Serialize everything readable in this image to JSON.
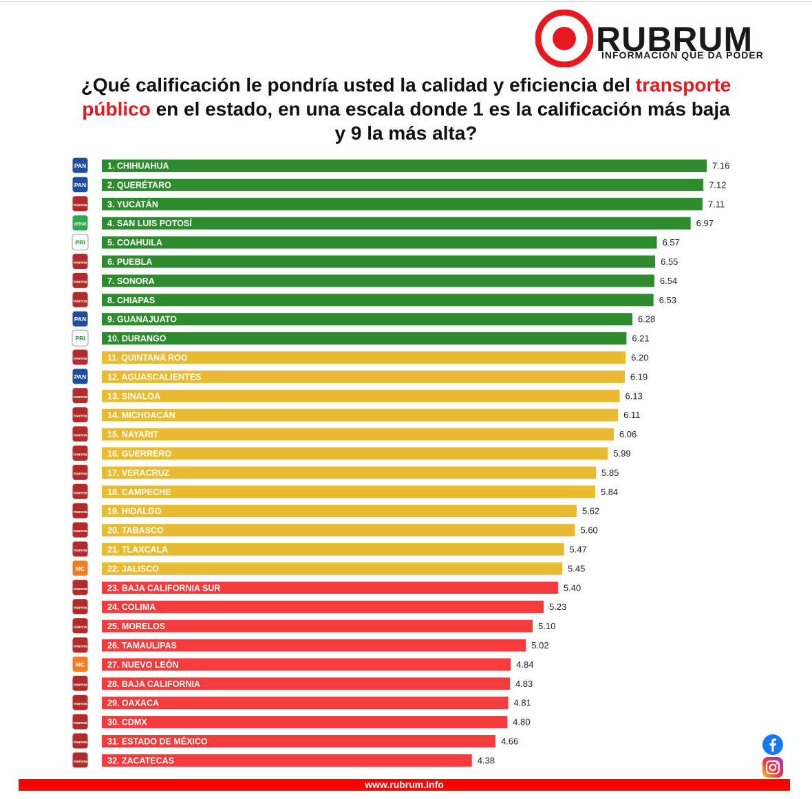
{
  "brand": {
    "name": "RUBRUM",
    "tagline": "INFORMACIÓN QUE DA PODER",
    "website": "www.rubrum.info",
    "accent_color": "#e6191e"
  },
  "title": {
    "part1": "¿Qué calificación le pondría usted la calidad y eficiencia del ",
    "highlight": "transporte público",
    "part2": " en el estado, en una escala donde 1 es la calificación más baja y 9 la más alta?"
  },
  "colors": {
    "green": "#2e8b2e",
    "yellow": "#e8bb30",
    "red": "#f53b3b"
  },
  "party_logos": {
    "PAN": {
      "label": "PAN",
      "bg": "#1f4f9c",
      "fg": "#ffffff"
    },
    "morena": {
      "label": "morena",
      "bg": "#b22a2a",
      "fg": "#ffffff"
    },
    "VERDE": {
      "label": "VERDE",
      "bg": "#2fa84f",
      "fg": "#ffffff"
    },
    "PRI": {
      "label": "PRI",
      "bg": "#ffffff",
      "fg": "#1a8c3a"
    },
    "MC": {
      "label": "MC",
      "bg": "#f47b20",
      "fg": "#ffffff"
    }
  },
  "chart_data": {
    "type": "bar",
    "orientation": "horizontal",
    "categories": [
      "1. CHIHUAHUA",
      "2. QUERÉTARO",
      "3. YUCATÁN",
      "4. SAN LUIS POTOSÍ",
      "5. COAHUILA",
      "6. PUEBLA",
      "7. SONORA",
      "8. CHIAPAS",
      "9. GUANAJUATO",
      "10. DURANGO",
      "11. QUINTANA ROO",
      "12. AGUASCALIENTES",
      "13. SINALOA",
      "14. MICHOACÁN",
      "15. NAYARIT",
      "16. GUERRERO",
      "17. VERACRUZ",
      "18. CAMPECHE",
      "19. HIDALGO",
      "20. TABASCO",
      "21. TLAXCALA",
      "22. JALISCO",
      "23. BAJA CALIFORNIA SUR",
      "24. COLIMA",
      "25. MORELOS",
      "26. TAMAULIPAS",
      "27. NUEVO LEÓN",
      "28. BAJA CALIFORNIA",
      "29. OAXACA",
      "30. CDMX",
      "31. ESTADO DE MÉXICO",
      "32. ZACATECAS"
    ],
    "values": [
      7.16,
      7.12,
      7.11,
      6.97,
      6.57,
      6.55,
      6.54,
      6.53,
      6.28,
      6.21,
      6.2,
      6.19,
      6.13,
      6.11,
      6.06,
      5.99,
      5.85,
      5.84,
      5.62,
      5.6,
      5.47,
      5.45,
      5.4,
      5.23,
      5.1,
      5.02,
      4.84,
      4.83,
      4.81,
      4.8,
      4.66,
      4.38
    ],
    "value_labels": [
      "7.16",
      "7.12",
      "7.11",
      "6.97",
      "6.57",
      "6.55",
      "6.54",
      "6.53",
      "6.28",
      "6.21",
      "6.20",
      "6.19",
      "6.13",
      "6.11",
      "6.06",
      "5.99",
      "5.85",
      "5.84",
      "5.62",
      "5.60",
      "5.47",
      "5.45",
      "5.40",
      "5.23",
      "5.10",
      "5.02",
      "4.84",
      "4.83",
      "4.81",
      "4.80",
      "4.66",
      "4.38"
    ],
    "bar_colors": [
      "green",
      "green",
      "green",
      "green",
      "green",
      "green",
      "green",
      "green",
      "green",
      "green",
      "yellow",
      "yellow",
      "yellow",
      "yellow",
      "yellow",
      "yellow",
      "yellow",
      "yellow",
      "yellow",
      "yellow",
      "yellow",
      "yellow",
      "red",
      "red",
      "red",
      "red",
      "red",
      "red",
      "red",
      "red",
      "red",
      "red"
    ],
    "parties": [
      "PAN",
      "PAN",
      "morena",
      "VERDE",
      "PRI",
      "morena",
      "morena",
      "morena",
      "PAN",
      "PRI",
      "morena",
      "PAN",
      "morena",
      "morena",
      "morena",
      "morena",
      "morena",
      "morena",
      "morena",
      "morena",
      "morena",
      "MC",
      "morena",
      "morena",
      "morena",
      "morena",
      "MC",
      "morena",
      "morena",
      "morena",
      "morena",
      "morena"
    ],
    "xlim": [
      0,
      7.16
    ],
    "grid": false,
    "legend": "none"
  },
  "social": {
    "facebook_icon": "facebook-icon",
    "instagram_icon": "instagram-icon"
  }
}
